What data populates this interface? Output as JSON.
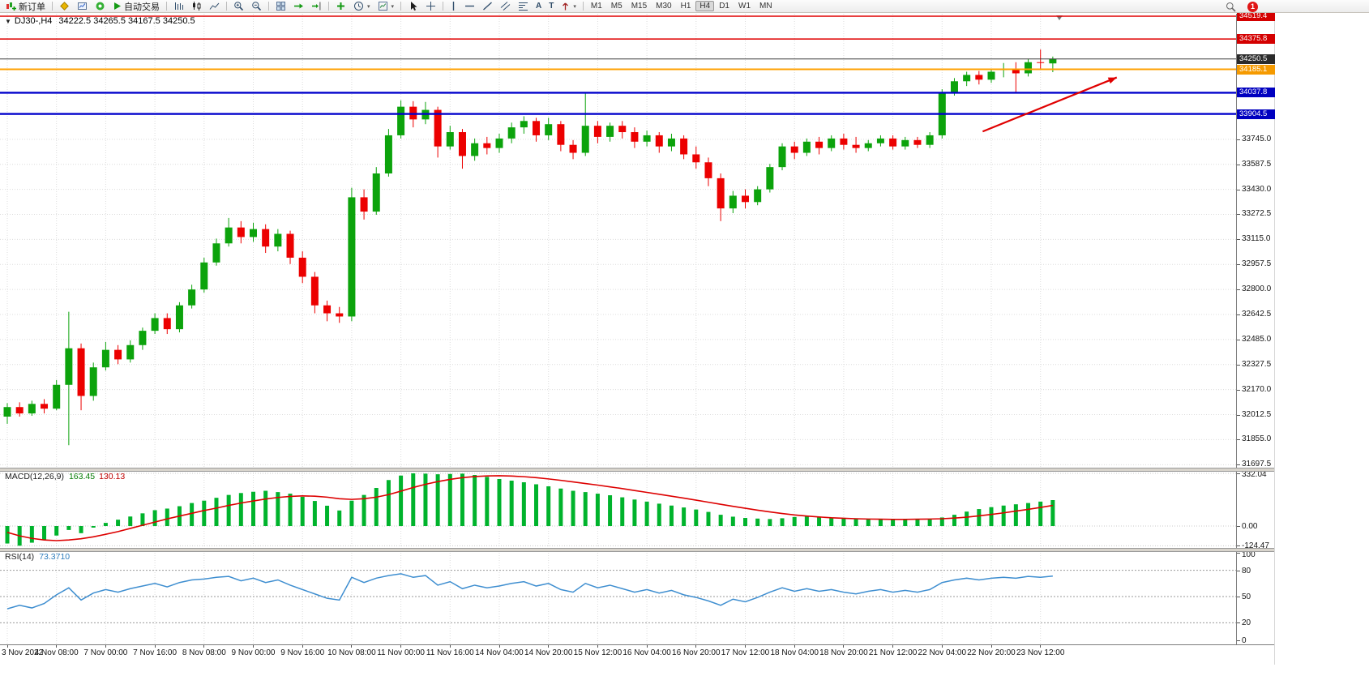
{
  "icons": {
    "collapse": "▼",
    "caret": "▾"
  },
  "toolbar": {
    "new_order": "新订单",
    "autotrading": "自动交易",
    "timeframes": [
      "M1",
      "M5",
      "M15",
      "M30",
      "H1",
      "H4",
      "D1",
      "W1",
      "MN"
    ],
    "active_timeframe": "H4",
    "notification_badge": "1"
  },
  "chart": {
    "symbol_period": "DJ30-,H4",
    "ohlc": "34222.5 34265.5 34167.5 34250.5"
  },
  "chart_data": {
    "type": "candlestick",
    "symbol": "DJ30-",
    "period": "H4",
    "current_bar": {
      "open": 34222.5,
      "high": 34265.5,
      "low": 34167.5,
      "close": 34250.5
    },
    "bid": 34250.5,
    "colors": {
      "up": "#0CA30C",
      "down": "#EC0000",
      "grid": "#DCDCDC",
      "background": "#FFFFFF",
      "axis_text": "#141414"
    },
    "price_axis": {
      "max": 34534.7,
      "min": 31678.7,
      "plain_ticks": [
        33745.0,
        33587.5,
        33430.0,
        33272.5,
        33115.0,
        32957.5,
        32800.0,
        32642.5,
        32485.0,
        32327.5,
        32170.0,
        32012.5,
        31855.0,
        31697.5
      ]
    },
    "level_lines": [
      {
        "price": 34519.4,
        "color": "#E00000",
        "label_bg": "#D40000",
        "width": 1.5
      },
      {
        "price": 34375.8,
        "color": "#E00000",
        "label_bg": "#D40000",
        "width": 1.5
      },
      {
        "price": 34250.5,
        "color": "#3A3A3A",
        "label_bg": "#2B2B2B",
        "width": 1,
        "role": "bid"
      },
      {
        "price": 34185.1,
        "color": "#FFA000",
        "label_bg": "#F59A00",
        "width": 2
      },
      {
        "price": 34037.8,
        "color": "#0000CC",
        "label_bg": "#0000C0",
        "width": 2.4
      },
      {
        "price": 33904.5,
        "color": "#0000CC",
        "label_bg": "#0000C0",
        "width": 2.4
      }
    ],
    "time_labels": [
      "3 Nov 2022",
      "4 Nov 08:00",
      "7 Nov 00:00",
      "7 Nov 16:00",
      "8 Nov 08:00",
      "9 Nov 00:00",
      "9 Nov 16:00",
      "10 Nov 08:00",
      "11 Nov 00:00",
      "11 Nov 16:00",
      "14 Nov 04:00",
      "14 Nov 20:00",
      "15 Nov 12:00",
      "16 Nov 04:00",
      "16 Nov 20:00",
      "17 Nov 12:00",
      "18 Nov 04:00",
      "18 Nov 20:00",
      "21 Nov 12:00",
      "22 Nov 04:00",
      "22 Nov 20:00",
      "23 Nov 12:00"
    ],
    "candles": [
      [
        32000,
        32085,
        31955,
        32060
      ],
      [
        32060,
        32090,
        32000,
        32020
      ],
      [
        32020,
        32100,
        32005,
        32080
      ],
      [
        32080,
        32110,
        32020,
        32050
      ],
      [
        32050,
        32230,
        32040,
        32200
      ],
      [
        32200,
        32660,
        31820,
        32430
      ],
      [
        32430,
        32460,
        32040,
        32130
      ],
      [
        32130,
        32340,
        32100,
        32310
      ],
      [
        32310,
        32470,
        32290,
        32420
      ],
      [
        32420,
        32450,
        32330,
        32360
      ],
      [
        32360,
        32480,
        32340,
        32450
      ],
      [
        32450,
        32560,
        32420,
        32540
      ],
      [
        32540,
        32650,
        32520,
        32620
      ],
      [
        32620,
        32650,
        32520,
        32550
      ],
      [
        32550,
        32720,
        32530,
        32700
      ],
      [
        32700,
        32830,
        32680,
        32800
      ],
      [
        32800,
        33000,
        32780,
        32970
      ],
      [
        32970,
        33120,
        32950,
        33090
      ],
      [
        33090,
        33250,
        33070,
        33190
      ],
      [
        33190,
        33230,
        33090,
        33130
      ],
      [
        33130,
        33220,
        33100,
        33180
      ],
      [
        33180,
        33210,
        33030,
        33070
      ],
      [
        33070,
        33180,
        33040,
        33150
      ],
      [
        33150,
        33170,
        32960,
        33000
      ],
      [
        33000,
        33040,
        32840,
        32880
      ],
      [
        32880,
        32910,
        32650,
        32700
      ],
      [
        32700,
        32730,
        32600,
        32650
      ],
      [
        32650,
        32690,
        32590,
        32630
      ],
      [
        32630,
        33440,
        32600,
        33380
      ],
      [
        33380,
        33430,
        33240,
        33290
      ],
      [
        33290,
        33570,
        33270,
        33530
      ],
      [
        33530,
        33810,
        33510,
        33770
      ],
      [
        33770,
        33990,
        33750,
        33950
      ],
      [
        33950,
        33985,
        33820,
        33870
      ],
      [
        33870,
        33980,
        33840,
        33930
      ],
      [
        33930,
        33950,
        33630,
        33700
      ],
      [
        33700,
        33830,
        33680,
        33790
      ],
      [
        33790,
        33810,
        33560,
        33640
      ],
      [
        33640,
        33750,
        33610,
        33720
      ],
      [
        33720,
        33760,
        33650,
        33690
      ],
      [
        33690,
        33780,
        33660,
        33750
      ],
      [
        33750,
        33850,
        33720,
        33820
      ],
      [
        33820,
        33890,
        33780,
        33860
      ],
      [
        33860,
        33880,
        33730,
        33770
      ],
      [
        33770,
        33880,
        33740,
        33840
      ],
      [
        33840,
        33860,
        33670,
        33710
      ],
      [
        33710,
        33740,
        33620,
        33660
      ],
      [
        33660,
        34040,
        33640,
        33830
      ],
      [
        33830,
        33860,
        33720,
        33760
      ],
      [
        33760,
        33850,
        33730,
        33830
      ],
      [
        33830,
        33860,
        33750,
        33790
      ],
      [
        33790,
        33820,
        33690,
        33730
      ],
      [
        33730,
        33800,
        33700,
        33770
      ],
      [
        33770,
        33790,
        33660,
        33700
      ],
      [
        33700,
        33780,
        33670,
        33750
      ],
      [
        33750,
        33770,
        33620,
        33650
      ],
      [
        33650,
        33700,
        33560,
        33600
      ],
      [
        33600,
        33630,
        33450,
        33500
      ],
      [
        33500,
        33530,
        33230,
        33310
      ],
      [
        33310,
        33420,
        33280,
        33390
      ],
      [
        33390,
        33430,
        33310,
        33350
      ],
      [
        33350,
        33450,
        33330,
        33430
      ],
      [
        33430,
        33590,
        33410,
        33570
      ],
      [
        33570,
        33720,
        33550,
        33700
      ],
      [
        33700,
        33730,
        33620,
        33660
      ],
      [
        33660,
        33750,
        33640,
        33730
      ],
      [
        33730,
        33760,
        33650,
        33690
      ],
      [
        33690,
        33770,
        33670,
        33750
      ],
      [
        33750,
        33780,
        33680,
        33710
      ],
      [
        33710,
        33760,
        33660,
        33690
      ],
      [
        33690,
        33740,
        33670,
        33720
      ],
      [
        33720,
        33770,
        33700,
        33750
      ],
      [
        33750,
        33770,
        33680,
        33700
      ],
      [
        33700,
        33760,
        33680,
        33740
      ],
      [
        33740,
        33760,
        33690,
        33710
      ],
      [
        33710,
        33790,
        33690,
        33770
      ],
      [
        33770,
        34060,
        33750,
        34040
      ],
      [
        34040,
        34130,
        34020,
        34110
      ],
      [
        34110,
        34170,
        34080,
        34150
      ],
      [
        34150,
        34175,
        34090,
        34120
      ],
      [
        34120,
        34190,
        34100,
        34170
      ],
      [
        34180,
        34225,
        34135,
        34190
      ],
      [
        34190,
        34230,
        34040,
        34160
      ],
      [
        34160,
        34250,
        34140,
        34230
      ],
      [
        34230,
        34310,
        34190,
        34225
      ],
      [
        34222.5,
        34265.5,
        34167.5,
        34250.5
      ]
    ],
    "indicators": {
      "macd": {
        "label": "MACD(12,26,9)",
        "main_value": "163.45",
        "signal_value": "130.13",
        "axis_ticks": [
          "332.04",
          "0.00",
          "-124.47"
        ],
        "axis_max": 332.04,
        "axis_min": -124.47,
        "histogram_color": "#00B32C",
        "signal_color": "#DD0000",
        "histogram": [
          -110,
          -124,
          -105,
          -85,
          -60,
          -25,
          -45,
          -10,
          20,
          40,
          60,
          80,
          100,
          110,
          125,
          145,
          160,
          178,
          196,
          208,
          216,
          222,
          214,
          204,
          184,
          158,
          128,
          98,
          160,
          196,
          240,
          290,
          318,
          332,
          330,
          326,
          328,
          330,
          322,
          310,
          296,
          286,
          276,
          263,
          250,
          236,
          222,
          214,
          204,
          194,
          181,
          167,
          154,
          141,
          129,
          117,
          104,
          89,
          71,
          59,
          51,
          47,
          44,
          49,
          57,
          61,
          57,
          54,
          51,
          47,
          44,
          41,
          39,
          41,
          43,
          45,
          54,
          71,
          91,
          107,
          119,
          129,
          137,
          145,
          154,
          163.45
        ],
        "signal": [
          -40,
          -62,
          -78,
          -88,
          -92,
          -88,
          -80,
          -68,
          -52,
          -35,
          -15,
          5,
          25,
          45,
          63,
          80,
          98,
          113,
          130,
          145,
          158,
          170,
          180,
          187,
          190,
          188,
          182,
          172,
          168,
          172,
          182,
          198,
          220,
          243,
          263,
          280,
          294,
          305,
          312,
          316,
          317,
          315,
          311,
          305,
          297,
          288,
          278,
          268,
          258,
          247,
          236,
          224,
          212,
          200,
          188,
          176,
          163,
          150,
          137,
          124,
          112,
          100,
          89,
          79,
          70,
          63,
          57,
          52,
          49,
          46,
          44,
          43,
          42,
          42,
          43,
          44,
          46,
          50,
          56,
          64,
          73,
          83,
          94,
          105,
          117,
          130.13
        ]
      },
      "rsi": {
        "label": "RSI(14)",
        "value": "73.3710",
        "axis_ticks": [
          100,
          80,
          50,
          20,
          0
        ],
        "levels": [
          80,
          50,
          20
        ],
        "range": [
          0,
          100
        ],
        "line_color": "#3E8ED0",
        "values": [
          36,
          40,
          37,
          42,
          52,
          60,
          46,
          54,
          58,
          55,
          59,
          62,
          65,
          61,
          66,
          69,
          70,
          72,
          73,
          68,
          71,
          66,
          69,
          63,
          58,
          53,
          48,
          46,
          72,
          66,
          71,
          74,
          76,
          72,
          74,
          63,
          67,
          59,
          63,
          60,
          62,
          65,
          67,
          62,
          65,
          58,
          55,
          65,
          60,
          63,
          59,
          55,
          58,
          54,
          57,
          52,
          49,
          45,
          40,
          47,
          44,
          49,
          55,
          60,
          56,
          59,
          56,
          58,
          55,
          53,
          56,
          58,
          55,
          57,
          55,
          58,
          66,
          69,
          71,
          69,
          71,
          72,
          71,
          73,
          72,
          73.37
        ]
      }
    },
    "annotations": {
      "trend_arrow": {
        "color": "#E00000",
        "bar1": 79.3,
        "price1": 33794,
        "bar2": 90.2,
        "price2": 34134
      }
    }
  }
}
